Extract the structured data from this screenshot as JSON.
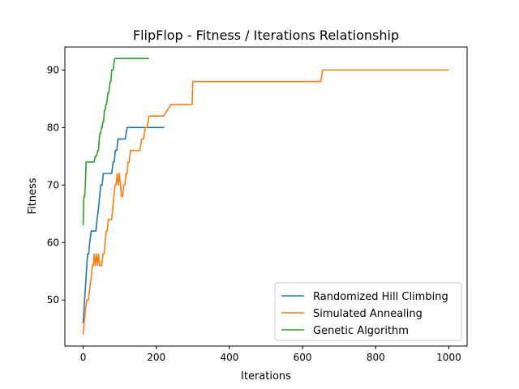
{
  "chart_data": {
    "type": "line",
    "title": "FlipFlop - Fitness / Iterations Relationship",
    "xlabel": "Iterations",
    "ylabel": "Fitness",
    "xlim": [
      -50,
      1050
    ],
    "ylim": [
      42,
      94
    ],
    "xticks": [
      0,
      200,
      400,
      600,
      800,
      1000
    ],
    "yticks": [
      50,
      60,
      70,
      80,
      90
    ],
    "grid": false,
    "legend_position": "lower-right",
    "series": [
      {
        "name": "Randomized Hill Climbing",
        "color": "#1f77b4",
        "x": [
          0,
          2,
          4,
          6,
          8,
          10,
          12,
          15,
          18,
          22,
          25,
          28,
          32,
          35,
          38,
          42,
          45,
          48,
          52,
          55,
          58,
          62,
          65,
          68,
          72,
          75,
          78,
          82,
          85,
          88,
          92,
          95,
          98,
          100,
          105,
          110,
          115,
          120,
          125,
          130,
          150,
          170,
          190,
          210,
          222
        ],
        "y": [
          46,
          48,
          50,
          52,
          54,
          56,
          58,
          58,
          60,
          62,
          62,
          62,
          62,
          62,
          64,
          66,
          68,
          70,
          70,
          72,
          72,
          72,
          72,
          72,
          72,
          72,
          72,
          74,
          74,
          76,
          76,
          78,
          78,
          78,
          78,
          78,
          78,
          80,
          80,
          80,
          80,
          80,
          80,
          80,
          80
        ]
      },
      {
        "name": "Simulated Annealing",
        "color": "#ff7f0e",
        "x": [
          0,
          3,
          6,
          10,
          14,
          18,
          22,
          25,
          28,
          30,
          33,
          36,
          39,
          42,
          45,
          48,
          51,
          54,
          57,
          60,
          63,
          66,
          69,
          72,
          75,
          78,
          81,
          84,
          87,
          90,
          93,
          96,
          99,
          102,
          105,
          108,
          111,
          114,
          117,
          120,
          123,
          126,
          129,
          132,
          135,
          140,
          145,
          150,
          155,
          160,
          165,
          170,
          175,
          180,
          200,
          220,
          240,
          260,
          280,
          298,
          300,
          350,
          400,
          450,
          500,
          550,
          600,
          650,
          655,
          700,
          750,
          800,
          850,
          900,
          950,
          1000
        ],
        "y": [
          44,
          46,
          48,
          50,
          50,
          52,
          54,
          56,
          56,
          58,
          56,
          58,
          56,
          58,
          56,
          56,
          56,
          58,
          58,
          60,
          62,
          62,
          64,
          64,
          64,
          64,
          66,
          68,
          70,
          70,
          72,
          70,
          72,
          70,
          68,
          68,
          70,
          70,
          72,
          72,
          74,
          74,
          76,
          76,
          76,
          76,
          76,
          76,
          76,
          78,
          78,
          80,
          80,
          82,
          82,
          82,
          84,
          84,
          84,
          84,
          88,
          88,
          88,
          88,
          88,
          88,
          88,
          88,
          90,
          90,
          90,
          90,
          90,
          90,
          90,
          90
        ]
      },
      {
        "name": "Genetic Algorithm",
        "color": "#2ca02c",
        "x": [
          0,
          1,
          2,
          4,
          6,
          8,
          12,
          16,
          20,
          25,
          30,
          33,
          36,
          40,
          42,
          44,
          46,
          48,
          50,
          52,
          54,
          56,
          58,
          60,
          62,
          64,
          66,
          68,
          70,
          72,
          74,
          76,
          78,
          80,
          82,
          84,
          86,
          88,
          90,
          95,
          100,
          110,
          120,
          130,
          140,
          150,
          160,
          170,
          180
        ],
        "y": [
          63,
          66,
          68,
          68,
          70,
          74,
          74,
          74,
          74,
          74,
          74,
          75,
          75,
          76,
          76,
          78,
          79,
          79,
          80,
          80,
          81,
          81,
          83,
          83,
          84,
          84,
          85,
          86,
          86,
          87,
          88,
          88,
          90,
          90,
          90,
          91,
          92,
          92,
          92,
          92,
          92,
          92,
          92,
          92,
          92,
          92,
          92,
          92,
          92
        ]
      }
    ]
  }
}
